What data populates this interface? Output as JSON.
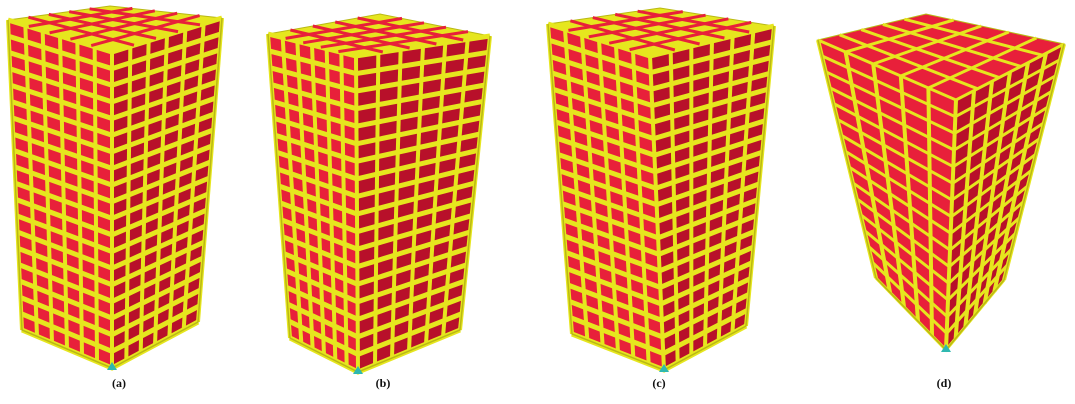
{
  "panels": [
    {
      "id": "a",
      "caption": "(a)"
    },
    {
      "id": "b",
      "caption": "(b)"
    },
    {
      "id": "c",
      "caption": "(c)"
    },
    {
      "id": "d",
      "caption": "(d)"
    }
  ],
  "colors": {
    "frame": "#e6e61e",
    "frame_dark": "#b9b914",
    "slab": "#e8203a",
    "slab_dark": "#b8102a",
    "background": "#ffffff",
    "support": "#2fb8b0"
  }
}
